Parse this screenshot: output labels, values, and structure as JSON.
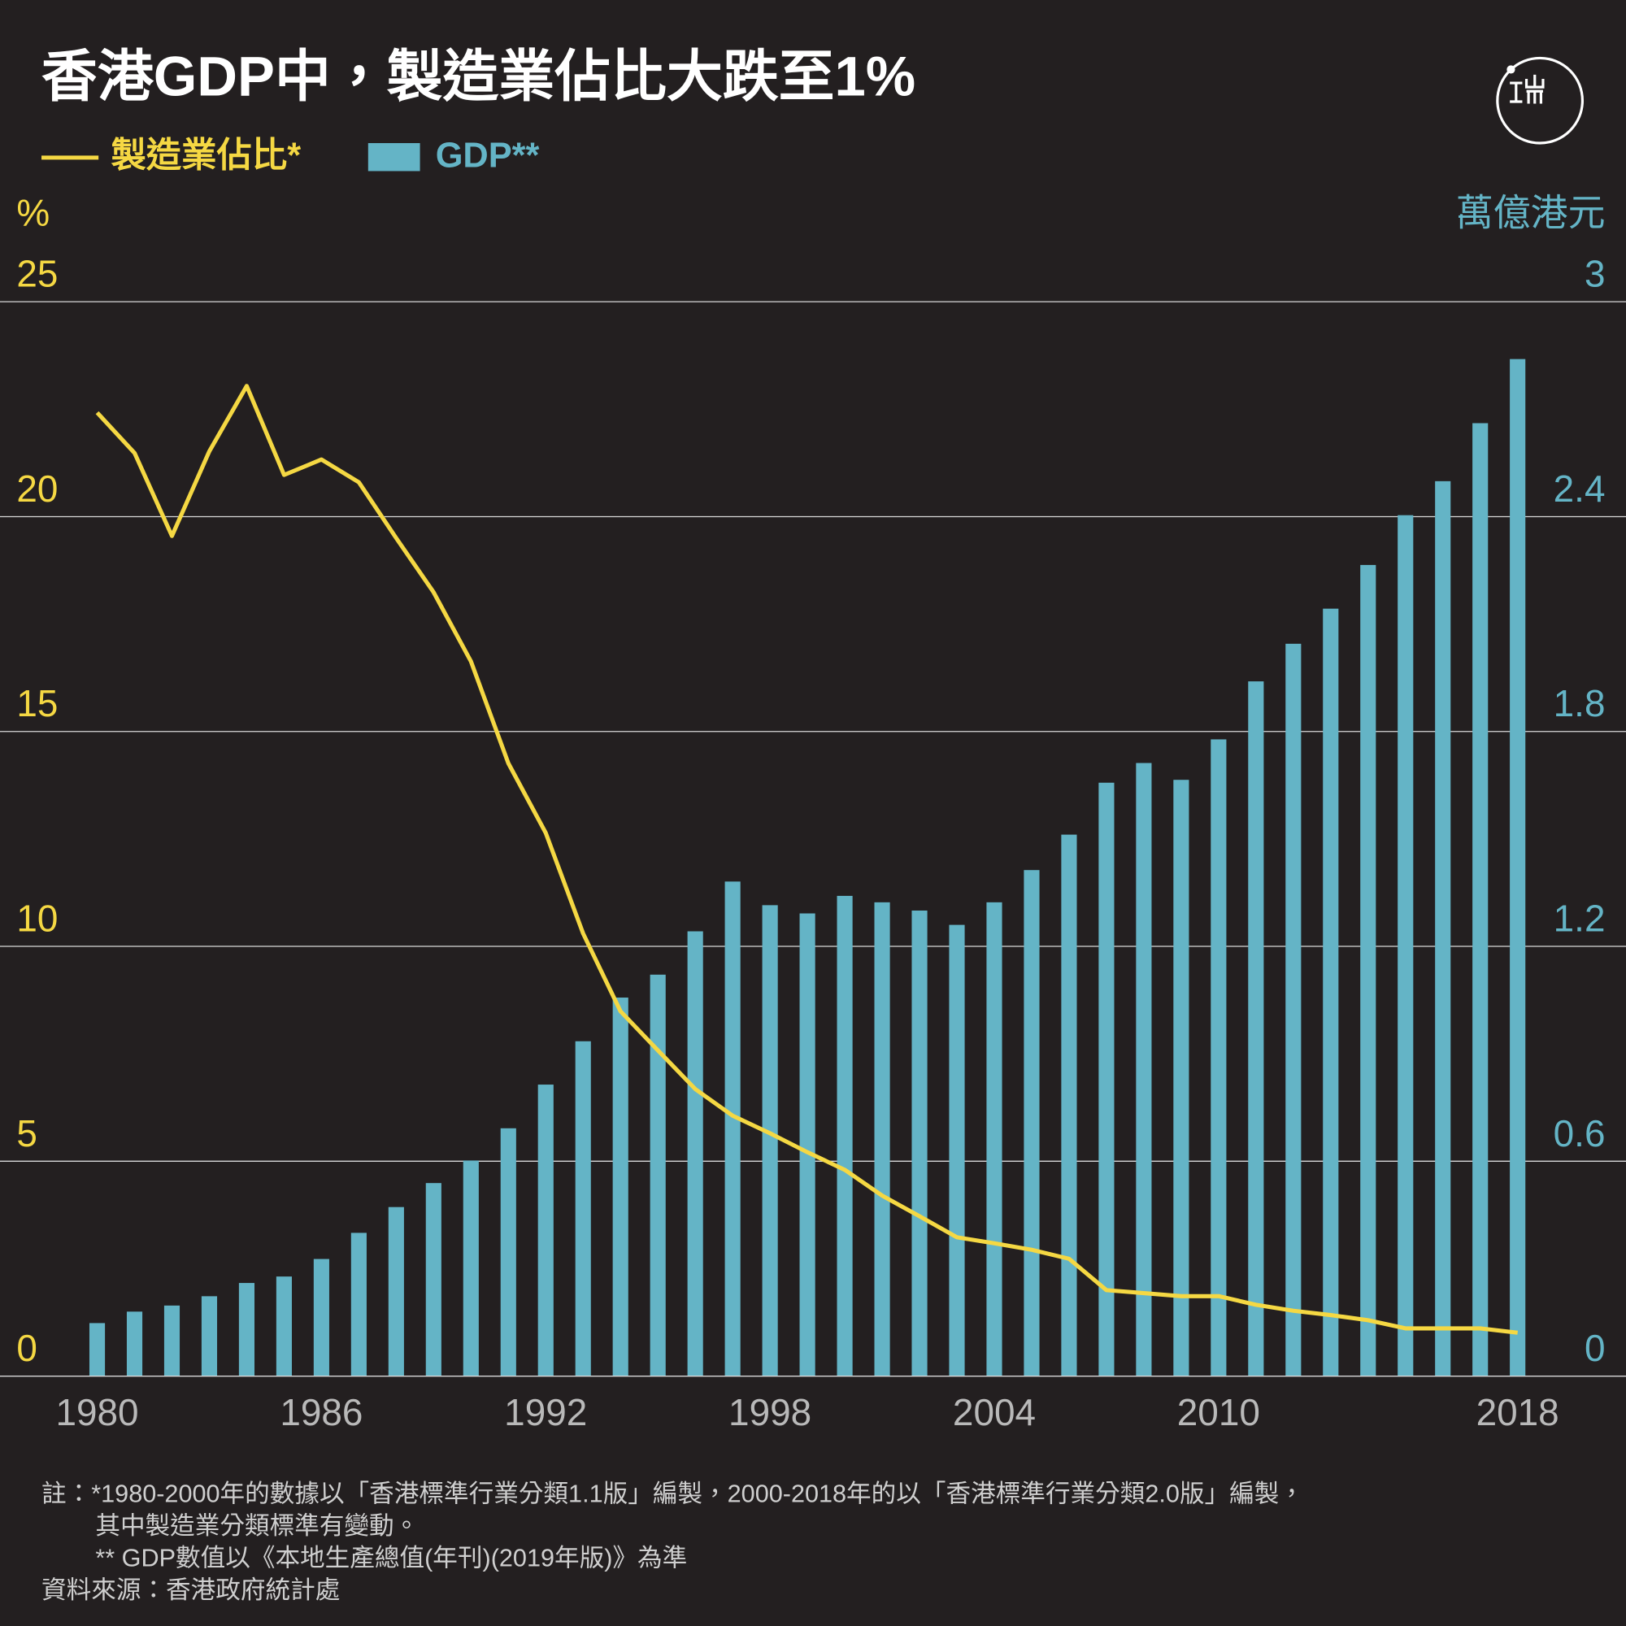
{
  "chart_data": {
    "type": "combo",
    "title": "香港GDP中，製造業佔比大跌至1%",
    "ylabel": "%",
    "y2label": "萬億港元",
    "x": [
      1980,
      1981,
      1982,
      1983,
      1984,
      1985,
      1986,
      1987,
      1988,
      1989,
      1990,
      1991,
      1992,
      1993,
      1994,
      1995,
      1996,
      1997,
      1998,
      1999,
      2000,
      2001,
      2002,
      2003,
      2004,
      2005,
      2006,
      2007,
      2008,
      2009,
      2010,
      2011,
      2012,
      2013,
      2014,
      2015,
      2016,
      2017,
      2018
    ],
    "xlim": [
      1977.4,
      2020.9
    ],
    "xticks": [
      1980,
      1986,
      1992,
      1998,
      2004,
      2010,
      2018
    ],
    "ylim": [
      0,
      25
    ],
    "yticks": [
      0,
      5,
      10,
      15,
      20,
      25
    ],
    "y2lim": [
      0,
      3
    ],
    "y2ticks": [
      0,
      0.6,
      1.2,
      1.8,
      2.4,
      3
    ],
    "grid": true,
    "series": [
      {
        "name": "製造業佔比*",
        "color": "#f5d843",
        "type": "line",
        "values": [
          22.42,
          21.48,
          19.55,
          21.52,
          23.04,
          20.97,
          21.33,
          20.8,
          19.5,
          18.24,
          16.63,
          14.26,
          12.64,
          10.3,
          8.49,
          7.58,
          6.68,
          6.06,
          5.65,
          5.21,
          4.8,
          4.2,
          3.72,
          3.23,
          3.09,
          2.94,
          2.73,
          2.0,
          1.93,
          1.86,
          1.86,
          1.66,
          1.52,
          1.42,
          1.3,
          1.11,
          1.11,
          1.11,
          1.01
        ]
      },
      {
        "name": "GDP**",
        "color": "#64b4c6",
        "type": "bar",
        "axis": "y2",
        "values": [
          0.148,
          0.18,
          0.197,
          0.223,
          0.26,
          0.278,
          0.327,
          0.4,
          0.472,
          0.539,
          0.602,
          0.692,
          0.814,
          0.935,
          1.057,
          1.121,
          1.242,
          1.381,
          1.315,
          1.292,
          1.341,
          1.323,
          1.3,
          1.26,
          1.323,
          1.413,
          1.512,
          1.657,
          1.712,
          1.665,
          1.778,
          1.94,
          2.045,
          2.143,
          2.265,
          2.404,
          2.499,
          2.661,
          2.84
        ]
      }
    ],
    "notes": [
      "註：*1980-2000年的數據以「香港標準行業分類1.1版」編製，2000-2018年的以「香港標準行業分類2.0版」編製，",
      "其中製造業分類標準有變動。",
      "** GDP數值以《本地生產總值(年刊)(2019年版)》為準"
    ],
    "source": "資料來源：香港政府統計處"
  }
}
